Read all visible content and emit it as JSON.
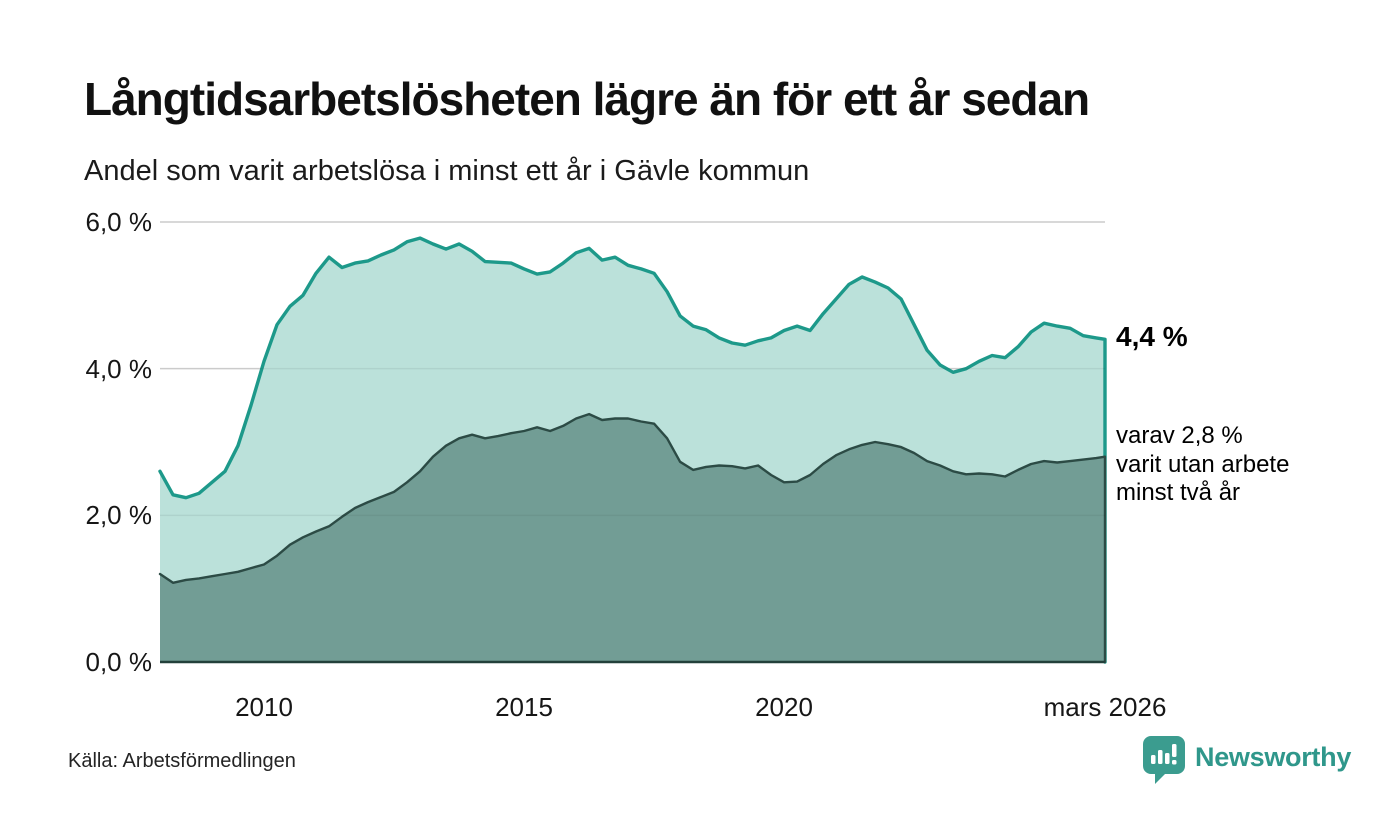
{
  "header": {
    "title": "Långtidsarbetslösheten lägre än för ett år sedan",
    "subtitle": "Andel som varit arbetslösa i minst ett år i Gävle kommun"
  },
  "chart_data": {
    "type": "area",
    "title": "Långtidsarbetslösheten lägre än för ett år sedan",
    "subtitle": "Andel som varit arbetslösa i minst ett år i Gävle kommun",
    "unit": "%",
    "x_range": [
      2008.0,
      2026.17
    ],
    "ylim": [
      0,
      6
    ],
    "grid": true,
    "yticks": [
      {
        "value": 6,
        "label": "6,0 %"
      },
      {
        "value": 4,
        "label": "4,0 %"
      },
      {
        "value": 2,
        "label": "2,0 %"
      },
      {
        "value": 0,
        "label": "0,0 %"
      }
    ],
    "xticks": [
      {
        "value": 2010,
        "label": "2010"
      },
      {
        "value": 2015,
        "label": "2015"
      },
      {
        "value": 2020,
        "label": "2020"
      },
      {
        "value": 2026.17,
        "label": "mars 2026"
      }
    ],
    "x": [
      2008.0,
      2008.25,
      2008.5,
      2008.75,
      2009.0,
      2009.25,
      2009.5,
      2009.75,
      2010.0,
      2010.25,
      2010.5,
      2010.75,
      2011.0,
      2011.25,
      2011.5,
      2011.75,
      2012.0,
      2012.25,
      2012.5,
      2012.75,
      2013.0,
      2013.25,
      2013.5,
      2013.75,
      2014.0,
      2014.25,
      2014.5,
      2014.75,
      2015.0,
      2015.25,
      2015.5,
      2015.75,
      2016.0,
      2016.25,
      2016.5,
      2016.75,
      2017.0,
      2017.25,
      2017.5,
      2017.75,
      2018.0,
      2018.25,
      2018.5,
      2018.75,
      2019.0,
      2019.25,
      2019.5,
      2019.75,
      2020.0,
      2020.25,
      2020.5,
      2020.75,
      2021.0,
      2021.25,
      2021.5,
      2021.75,
      2022.0,
      2022.25,
      2022.5,
      2022.75,
      2023.0,
      2023.25,
      2023.5,
      2023.75,
      2024.0,
      2024.25,
      2024.5,
      2024.75,
      2025.0,
      2025.25,
      2025.5,
      2025.75,
      2026.0,
      2026.17
    ],
    "series": [
      {
        "name": "Andel arbetslösa minst ett år",
        "line_color": "#1d998a",
        "fill_color": "#b5ded7",
        "end_value_label": "4,4 %",
        "values": [
          2.6,
          2.28,
          2.24,
          2.3,
          2.45,
          2.6,
          2.95,
          3.5,
          4.1,
          4.6,
          4.85,
          5.0,
          5.3,
          5.52,
          5.38,
          5.44,
          5.47,
          5.55,
          5.62,
          5.73,
          5.78,
          5.7,
          5.63,
          5.7,
          5.6,
          5.46,
          5.45,
          5.44,
          5.36,
          5.29,
          5.32,
          5.44,
          5.58,
          5.64,
          5.48,
          5.52,
          5.41,
          5.36,
          5.3,
          5.05,
          4.72,
          4.58,
          4.53,
          4.42,
          4.35,
          4.32,
          4.38,
          4.42,
          4.52,
          4.58,
          4.52,
          4.75,
          4.95,
          5.15,
          5.25,
          5.18,
          5.1,
          4.95,
          4.6,
          4.25,
          4.05,
          3.95,
          4.0,
          4.1,
          4.18,
          4.15,
          4.3,
          4.5,
          4.62,
          4.58,
          4.55,
          4.45,
          4.42,
          4.4
        ]
      },
      {
        "name": "Andel arbetslösa minst två år",
        "line_color": "#2c4b45",
        "fill_color": "#6f9b93",
        "end_value_label": "2,8 %",
        "values": [
          1.2,
          1.08,
          1.12,
          1.14,
          1.17,
          1.2,
          1.23,
          1.28,
          1.33,
          1.45,
          1.6,
          1.7,
          1.78,
          1.85,
          1.98,
          2.1,
          2.18,
          2.25,
          2.32,
          2.45,
          2.6,
          2.8,
          2.95,
          3.05,
          3.1,
          3.05,
          3.08,
          3.12,
          3.15,
          3.2,
          3.15,
          3.22,
          3.32,
          3.38,
          3.3,
          3.32,
          3.32,
          3.28,
          3.25,
          3.05,
          2.73,
          2.62,
          2.66,
          2.68,
          2.67,
          2.64,
          2.68,
          2.55,
          2.45,
          2.46,
          2.55,
          2.7,
          2.82,
          2.9,
          2.96,
          3.0,
          2.97,
          2.93,
          2.85,
          2.74,
          2.68,
          2.6,
          2.56,
          2.57,
          2.56,
          2.53,
          2.62,
          2.7,
          2.74,
          2.72,
          2.74,
          2.76,
          2.78,
          2.8
        ]
      }
    ],
    "annotations": {
      "value": "4,4 %",
      "detail_lines": [
        "varav 2,8 %",
        "varit utan arbete",
        "minst två år"
      ]
    },
    "legend_position": "right-annotations"
  },
  "footer": {
    "source": "Källa: Arbetsförmedlingen",
    "brand": "Newsworthy",
    "brand_color": "#2f978b"
  },
  "colors": {
    "accent_teal": "#1d998a",
    "light_fill": "#b5ded7",
    "dark_fill": "#6f9b93",
    "dark_line": "#2c4b45",
    "gridline": "#d6d6d6",
    "baseline": "#22403a"
  }
}
